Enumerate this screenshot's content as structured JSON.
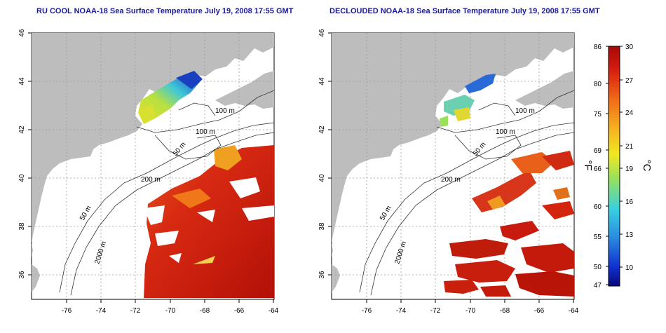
{
  "titles": {
    "left": "RU COOL NOAA-18 Sea Surface Temperature July 19, 2008 17:55 GMT",
    "right": "DECLOUDED NOAA-18 Sea Surface Temperature July 19, 2008 17:55 GMT"
  },
  "axes": {
    "x_ticks": [
      "-76",
      "-74",
      "-72",
      "-70",
      "-68",
      "-66",
      "-64"
    ],
    "y_ticks": [
      "36",
      "38",
      "40",
      "42",
      "44",
      "46"
    ],
    "x_range": [
      -77,
      -63
    ],
    "y_range": [
      35,
      46
    ]
  },
  "contour_labels": [
    "100 m",
    "100 m",
    "50 m",
    "200 m",
    "50 m",
    "2000 m"
  ],
  "colorbar": {
    "unit_f": "°F",
    "unit_c": "°C",
    "fahrenheit": [
      "86",
      "80",
      "75",
      "69",
      "66",
      "60",
      "55",
      "50",
      "47"
    ],
    "celsius": [
      "30",
      "27",
      "24",
      "21",
      "19",
      "16",
      "13",
      "10"
    ],
    "colors": [
      "#08087a",
      "#1030d0",
      "#2a8ae0",
      "#38d0e0",
      "#9ae05a",
      "#f0e820",
      "#f5b020",
      "#f06a18",
      "#d81e10",
      "#a50808"
    ]
  },
  "colors": {
    "land": "#bdbdbd",
    "ocean": "#ffffff",
    "title": "#1a1a9a",
    "grid": "#9a9a9a"
  }
}
